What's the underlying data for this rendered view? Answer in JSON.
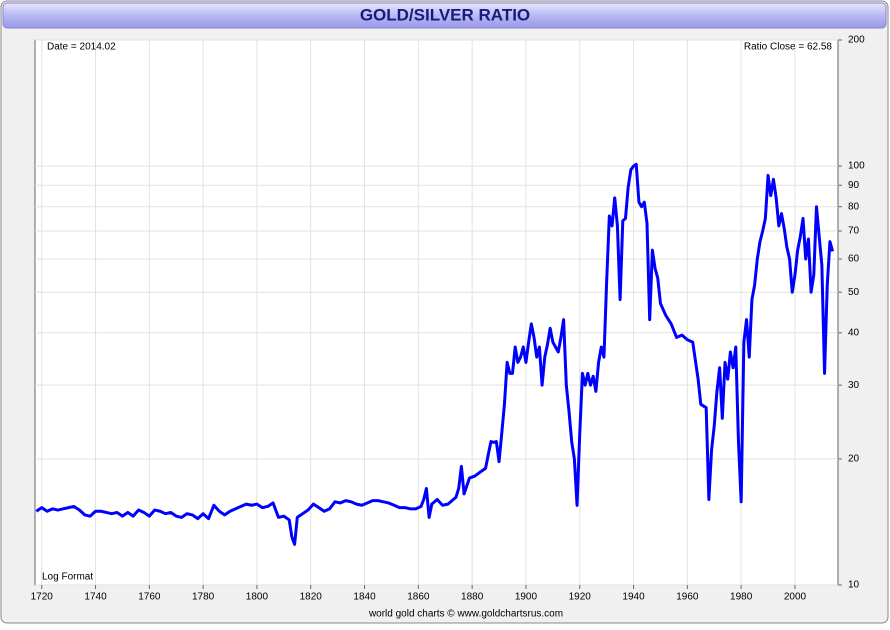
{
  "chart_data": {
    "type": "line",
    "title": "GOLD/SILVER RATIO",
    "annotations": {
      "top_left": "Date = 2014.02",
      "top_right": "Ratio Close = 62.58",
      "bottom_left": "Log Format"
    },
    "footer": "world gold charts © www.goldchartsrus.com",
    "log_scale": true,
    "grid": true,
    "color": "#0000ff",
    "xlim": [
      1717.5,
      2016
    ],
    "xticks": [
      1720,
      1740,
      1760,
      1780,
      1800,
      1820,
      1840,
      1860,
      1880,
      1900,
      1920,
      1940,
      1960,
      1980,
      2000
    ],
    "ylim": [
      10,
      200
    ],
    "yticks": [
      10,
      20,
      30,
      40,
      50,
      60,
      70,
      80,
      90,
      100,
      200
    ],
    "x": [
      1718,
      1720,
      1722,
      1724,
      1726,
      1728,
      1730,
      1732,
      1734,
      1736,
      1738,
      1740,
      1742,
      1744,
      1746,
      1748,
      1750,
      1752,
      1754,
      1756,
      1758,
      1760,
      1762,
      1764,
      1766,
      1768,
      1770,
      1772,
      1774,
      1776,
      1778,
      1780,
      1782,
      1784,
      1786,
      1788,
      1790,
      1792,
      1794,
      1796,
      1798,
      1800,
      1802,
      1804,
      1806,
      1808,
      1810,
      1812,
      1813,
      1814,
      1815,
      1817,
      1819,
      1821,
      1823,
      1825,
      1827,
      1829,
      1831,
      1833,
      1835,
      1837,
      1839,
      1841,
      1843,
      1845,
      1847,
      1849,
      1851,
      1853,
      1855,
      1857,
      1859,
      1861,
      1862,
      1863,
      1864,
      1865,
      1867,
      1869,
      1871,
      1873,
      1874,
      1875,
      1876,
      1877,
      1879,
      1881,
      1883,
      1885,
      1886,
      1887,
      1888,
      1889,
      1890,
      1891,
      1892,
      1893,
      1894,
      1895,
      1896,
      1897,
      1898,
      1899,
      1900,
      1901,
      1902,
      1903,
      1904,
      1905,
      1906,
      1907,
      1908,
      1909,
      1910,
      1911,
      1912,
      1913,
      1914,
      1915,
      1916,
      1917,
      1918,
      1919,
      1920,
      1921,
      1922,
      1923,
      1924,
      1925,
      1926,
      1927,
      1928,
      1929,
      1930,
      1931,
      1932,
      1933,
      1934,
      1935,
      1936,
      1937,
      1938,
      1939,
      1940,
      1941,
      1942,
      1943,
      1944,
      1945,
      1946,
      1947,
      1948,
      1949,
      1950,
      1952,
      1954,
      1956,
      1958,
      1960,
      1962,
      1964,
      1965,
      1967,
      1968,
      1969,
      1970,
      1971,
      1972,
      1973,
      1974,
      1975,
      1976,
      1977,
      1978,
      1979,
      1980,
      1981,
      1982,
      1983,
      1984,
      1985,
      1986,
      1987,
      1988,
      1989,
      1990,
      1991,
      1992,
      1993,
      1994,
      1995,
      1996,
      1997,
      1998,
      1999,
      2000,
      2001,
      2002,
      2003,
      2004,
      2005,
      2006,
      2007,
      2008,
      2009,
      2010,
      2011,
      2012,
      2013,
      2014
    ],
    "values": [
      15.0,
      15.3,
      15.0,
      15.2,
      15.1,
      15.2,
      15.3,
      15.4,
      15.1,
      14.7,
      14.6,
      15.0,
      15.0,
      14.9,
      14.8,
      14.9,
      14.6,
      14.9,
      14.6,
      15.1,
      14.9,
      14.6,
      15.1,
      15.0,
      14.8,
      14.9,
      14.6,
      14.5,
      14.8,
      14.7,
      14.4,
      14.8,
      14.4,
      15.5,
      15.0,
      14.7,
      15.0,
      15.2,
      15.4,
      15.6,
      15.5,
      15.6,
      15.3,
      15.4,
      15.7,
      14.5,
      14.6,
      14.3,
      13.0,
      12.5,
      14.5,
      14.8,
      15.1,
      15.6,
      15.3,
      15.0,
      15.2,
      15.8,
      15.7,
      15.9,
      15.8,
      15.6,
      15.5,
      15.7,
      15.9,
      15.9,
      15.8,
      15.7,
      15.5,
      15.3,
      15.3,
      15.2,
      15.2,
      15.4,
      16.0,
      17.0,
      14.5,
      15.6,
      16.0,
      15.5,
      15.6,
      16.0,
      16.2,
      17.0,
      19.2,
      16.5,
      18.0,
      18.2,
      18.6,
      19.0,
      20.5,
      22.0,
      21.9,
      22.0,
      19.7,
      23.0,
      27.0,
      34.0,
      32.0,
      32.0,
      37.0,
      34.0,
      35.0,
      37.0,
      34.0,
      38.0,
      42.0,
      39.0,
      35.0,
      37.0,
      30.0,
      35.0,
      37.5,
      41.0,
      38.0,
      37.0,
      36.0,
      39.0,
      43.0,
      30.0,
      26.0,
      22.0,
      20.0,
      15.5,
      23.0,
      32.0,
      30.0,
      32.0,
      30.0,
      31.5,
      29.0,
      34.0,
      37.0,
      35.0,
      53.0,
      76.0,
      72.0,
      84.0,
      72.0,
      48.0,
      74.0,
      75.0,
      89.0,
      98.0,
      100.0,
      101.0,
      82.0,
      80.0,
      82.0,
      73.0,
      43.0,
      63.0,
      57.0,
      54.0,
      47.0,
      44.0,
      42.0,
      39.0,
      39.5,
      38.5,
      38.0,
      31.0,
      27.0,
      26.5,
      16.0,
      21.0,
      24.0,
      29.0,
      33.0,
      25.0,
      34.0,
      31.0,
      36.0,
      33.0,
      37.0,
      22.0,
      15.8,
      38.0,
      43.0,
      35.0,
      48.0,
      52.0,
      60.0,
      66.0,
      70.0,
      75.0,
      95.0,
      85.0,
      93.0,
      84.0,
      72.0,
      77.0,
      71.0,
      64.0,
      60.0,
      50.0,
      55.0,
      63.0,
      68.0,
      75.0,
      60.0,
      67.0,
      50.0,
      55.0,
      80.0,
      68.0,
      58.0,
      32.0,
      52.0,
      66.0,
      62.58
    ]
  }
}
